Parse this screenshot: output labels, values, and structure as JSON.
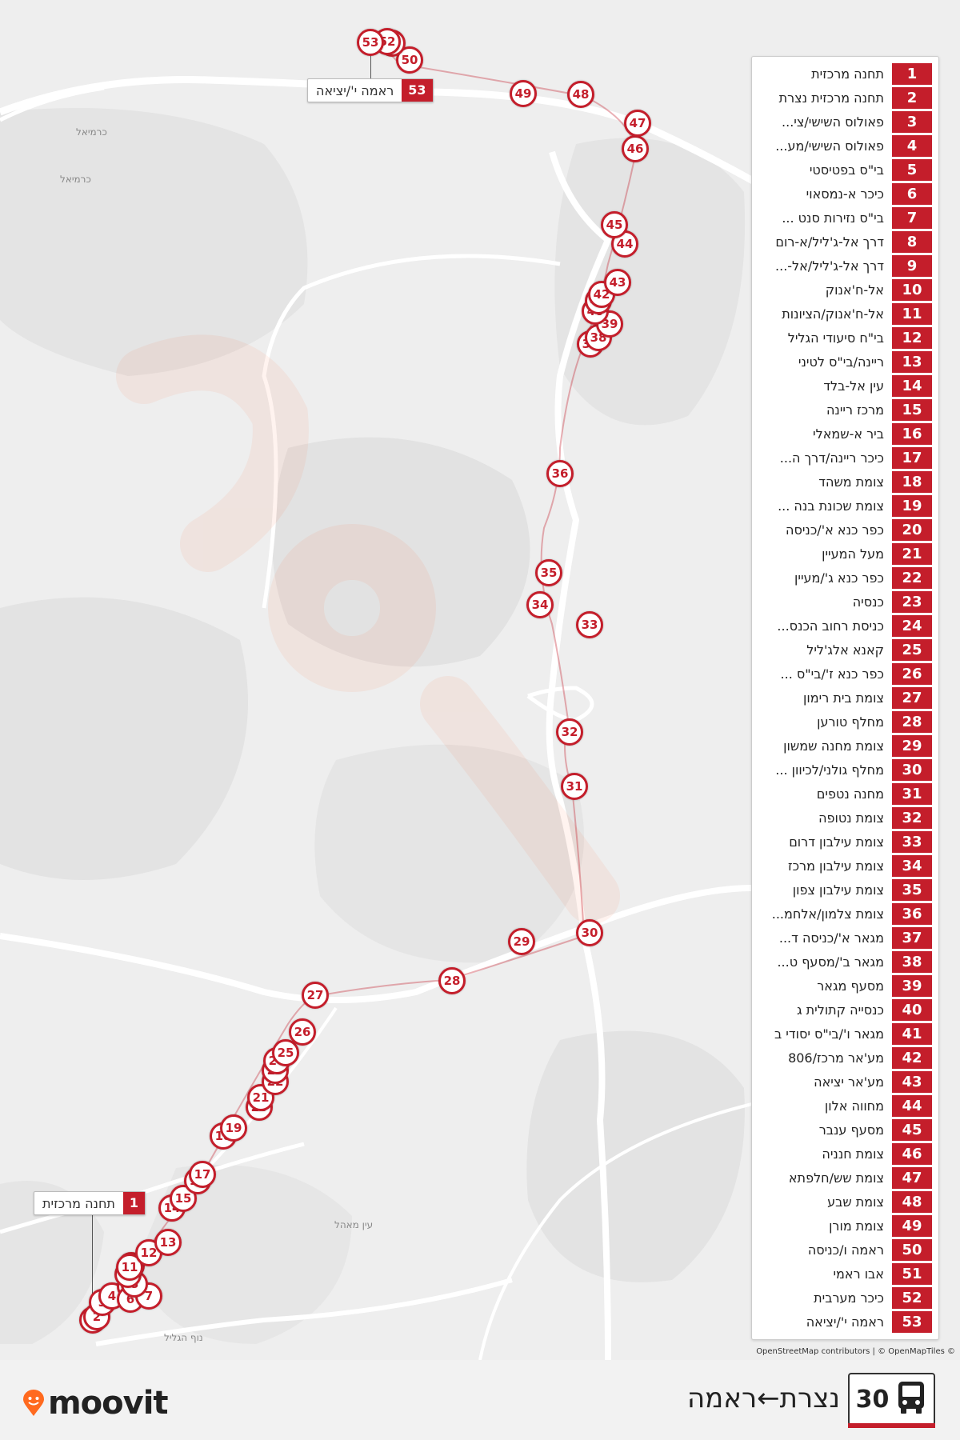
{
  "route": {
    "number": "30",
    "title": "נצרת←ראמה",
    "bus_icon": "bus-icon"
  },
  "brand": {
    "logo_text": "moovit",
    "accent_color": "#c41e2b",
    "logo_pin_color": "#ff6a1f"
  },
  "attribution": "OpenStreetMap contributors | © OpenMapTiles ©",
  "map": {
    "start_callout": {
      "num": "1",
      "label": "תחנה מרכזית"
    },
    "end_callout": {
      "num": "53",
      "label": "ראמה י'/יציאה"
    },
    "place_labels": [
      "כרמיאל",
      "כרמיאל",
      "נוף הגליל",
      "עין מאהל"
    ]
  },
  "stops": [
    {
      "num": "1",
      "name": "תחנה מרכזית"
    },
    {
      "num": "2",
      "name": "תחנה מרכזית נצרת"
    },
    {
      "num": "3",
      "name": "פאולוס השישי/צי..."
    },
    {
      "num": "4",
      "name": "פאולוס השישי/מע..."
    },
    {
      "num": "5",
      "name": "בי\"ס בפטיסטי"
    },
    {
      "num": "6",
      "name": "כיכר א-נמסאוי"
    },
    {
      "num": "7",
      "name": "בי\"ס נזירות סנט ..."
    },
    {
      "num": "8",
      "name": "דרך אל-ג'ליל/א-רום"
    },
    {
      "num": "9",
      "name": "דרך אל-ג'ליל/אל-..."
    },
    {
      "num": "10",
      "name": "אל-ח'אנוק"
    },
    {
      "num": "11",
      "name": "אל-ח'אנוק/הציונות"
    },
    {
      "num": "12",
      "name": "בי\"ח סיעודי הגליל"
    },
    {
      "num": "13",
      "name": "ריינה/בי\"ס לטיני"
    },
    {
      "num": "14",
      "name": "עין אל-בלד"
    },
    {
      "num": "15",
      "name": "מרכז ריינה"
    },
    {
      "num": "16",
      "name": "ביר א-שמאלי"
    },
    {
      "num": "17",
      "name": "כיכר ריינה/דרך ה..."
    },
    {
      "num": "18",
      "name": "צומת משהד"
    },
    {
      "num": "19",
      "name": "צומת שכונת בנה ..."
    },
    {
      "num": "20",
      "name": "כפר כנא א'/כניסה"
    },
    {
      "num": "21",
      "name": "מעל המעיין"
    },
    {
      "num": "22",
      "name": "כפר כנא ג'/מעיין"
    },
    {
      "num": "23",
      "name": "כנסיה"
    },
    {
      "num": "24",
      "name": "כניסת רחוב הכנס..."
    },
    {
      "num": "25",
      "name": "קאנא אלג'ליל"
    },
    {
      "num": "26",
      "name": "כפר כנא ז'/בי\"ס ..."
    },
    {
      "num": "27",
      "name": "צומת בית רימון"
    },
    {
      "num": "28",
      "name": "מחלף טורען"
    },
    {
      "num": "29",
      "name": "צומת מחנה שמשון"
    },
    {
      "num": "30",
      "name": "מחלף גולני/לכיוון ..."
    },
    {
      "num": "31",
      "name": "מחנה נטפים"
    },
    {
      "num": "32",
      "name": "צומת נטופה"
    },
    {
      "num": "33",
      "name": "צומת עילבון דרום"
    },
    {
      "num": "34",
      "name": "צומת עילבון מרכז"
    },
    {
      "num": "35",
      "name": "צומת עילבון צפון"
    },
    {
      "num": "36",
      "name": "צומת צלמון/אלחמ..."
    },
    {
      "num": "37",
      "name": "מגאר א'/כניסה ד..."
    },
    {
      "num": "38",
      "name": "מגאר ב'/מסעף ט..."
    },
    {
      "num": "39",
      "name": "מסעף מגאר"
    },
    {
      "num": "40",
      "name": "כנסייה קתולית ג"
    },
    {
      "num": "41",
      "name": "מגאר ו'/בי\"ס יסודי ב"
    },
    {
      "num": "42",
      "name": "מע'אר מרכז/806"
    },
    {
      "num": "43",
      "name": "מע'אר יציאה"
    },
    {
      "num": "44",
      "name": "מחווה אלון"
    },
    {
      "num": "45",
      "name": "מסעף ענבר"
    },
    {
      "num": "46",
      "name": "צומת חנניה"
    },
    {
      "num": "47",
      "name": "צומת שש/חלפתא"
    },
    {
      "num": "48",
      "name": "צומת שבע"
    },
    {
      "num": "49",
      "name": "צומת מורן"
    },
    {
      "num": "50",
      "name": "ראמה ו/כניסה"
    },
    {
      "num": "51",
      "name": "אבו ראמי"
    },
    {
      "num": "52",
      "name": "כיכר מערבית"
    },
    {
      "num": "53",
      "name": "ראמה י'/יציאה"
    }
  ]
}
